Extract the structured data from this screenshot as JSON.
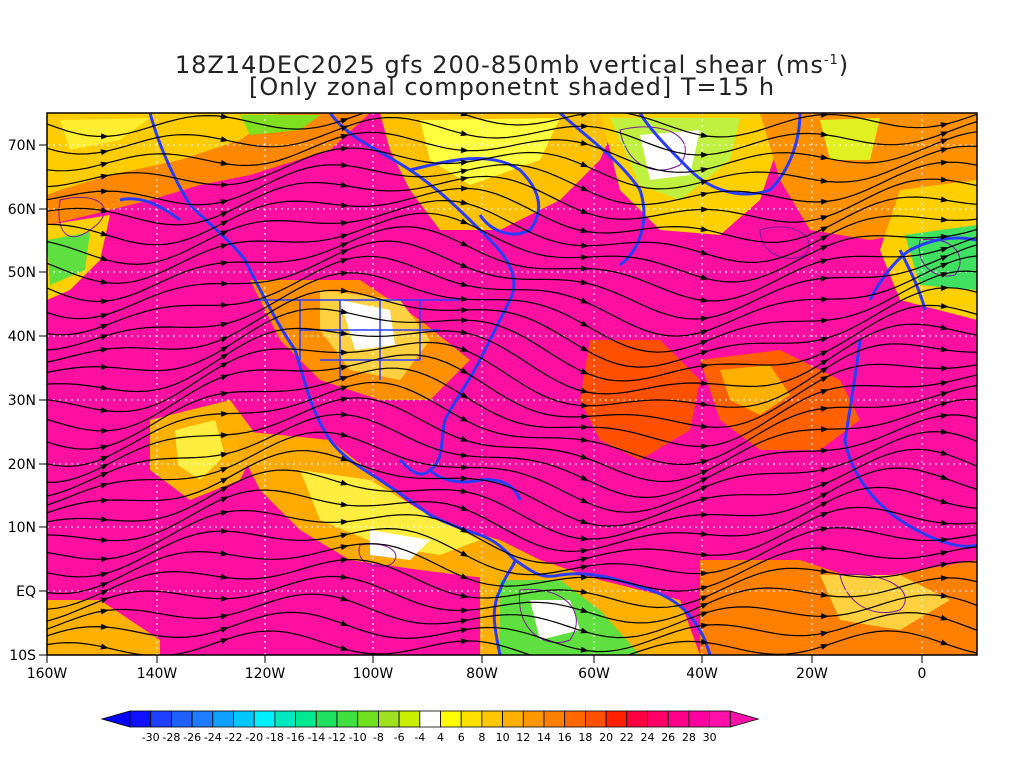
{
  "title": {
    "line1_prefix": "18Z14DEC2025 gfs 200-850mb vertical shear (ms",
    "line1_sup": "-1",
    "line1_suffix": ")",
    "line2": "[Only zonal componetnt shaded] T=15 h"
  },
  "axes": {
    "lon_labels": [
      "160W",
      "140W",
      "120W",
      "100W",
      "80W",
      "60W",
      "40W",
      "20W",
      "0"
    ],
    "lat_labels": [
      "70N",
      "60N",
      "50N",
      "40N",
      "30N",
      "20N",
      "10N",
      "EQ",
      "10S"
    ]
  },
  "colorbar": {
    "labels": [
      "-30",
      "-28",
      "-26",
      "-24",
      "-22",
      "-20",
      "-18",
      "-16",
      "-14",
      "-12",
      "-10",
      "-8",
      "-6",
      "-4",
      "4",
      "6",
      "8",
      "10",
      "12",
      "14",
      "16",
      "18",
      "20",
      "22",
      "24",
      "26",
      "28",
      "30"
    ],
    "colors": [
      "#1010ff",
      "#1e40ff",
      "#2060ff",
      "#1e7cff",
      "#10a0ff",
      "#00c8ff",
      "#00f0ff",
      "#00e8c0",
      "#00e890",
      "#20e060",
      "#40e040",
      "#70e020",
      "#a0e020",
      "#c8f000",
      "#ffffff",
      "#ffff00",
      "#ffe000",
      "#ffc800",
      "#ffb000",
      "#ff9800",
      "#ff8000",
      "#ff6800",
      "#ff5000",
      "#ff2000",
      "#ff0040",
      "#ff0066",
      "#ff0088",
      "#ff00a0",
      "#ff10a8"
    ],
    "min_arrow_color": "#0000ff",
    "max_arrow_color": "#ff10a8"
  },
  "colors": {
    "coast": "#2a3cff",
    "streamline": "#000000",
    "contour": "#7a1a9a",
    "grid": "#ffffff",
    "frame": "#000000"
  }
}
